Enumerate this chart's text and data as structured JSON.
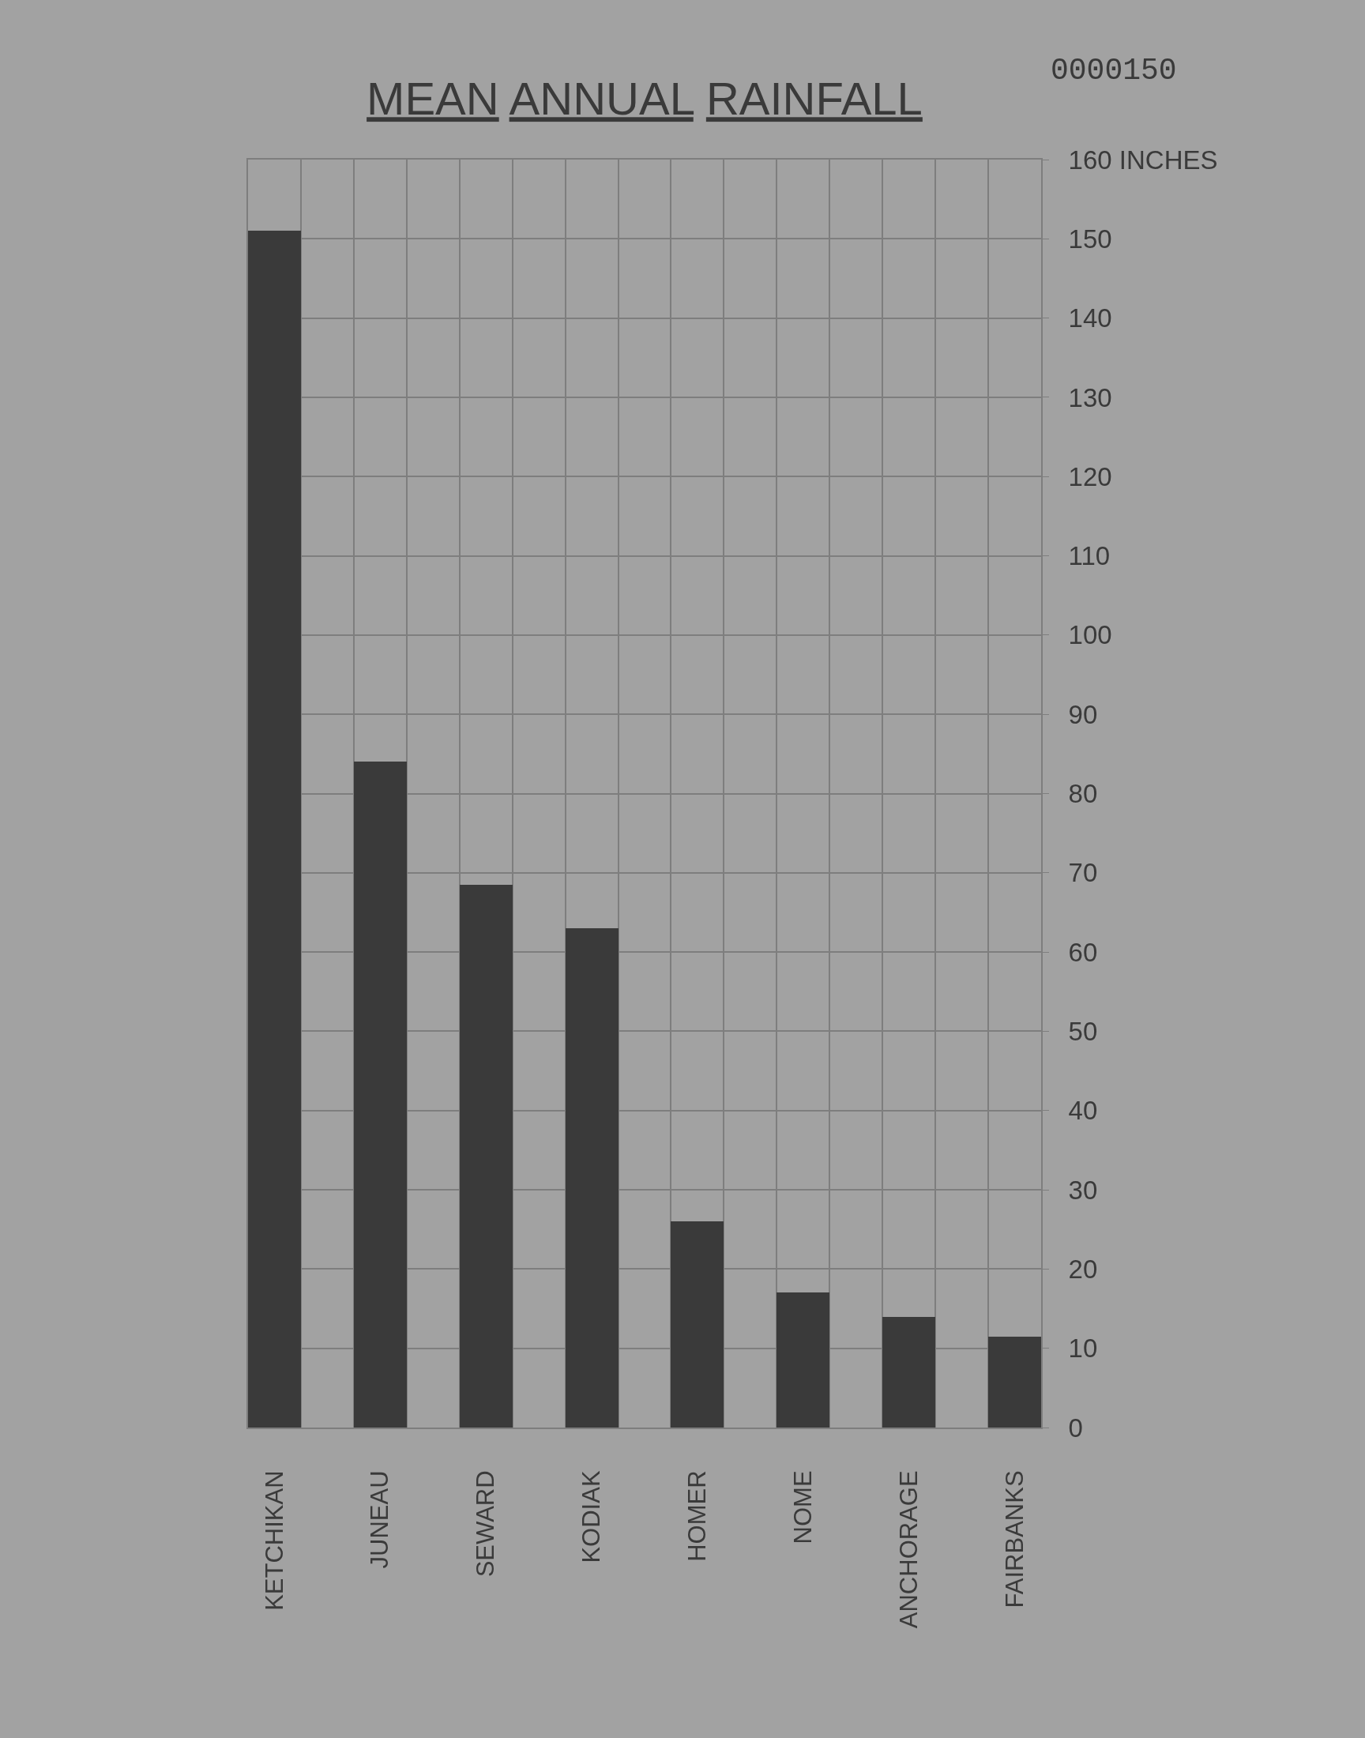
{
  "chart_data": {
    "type": "bar",
    "title": "MEAN ANNUAL RAINFALL",
    "annotations": [
      "0000150"
    ],
    "categories": [
      "KETCHIKAN",
      "JUNEAU",
      "SEWARD",
      "KODIAK",
      "HOMER",
      "NOME",
      "ANCHORAGE",
      "FAIRBANKS"
    ],
    "values": [
      151,
      84,
      68.5,
      63,
      26,
      17,
      14,
      11.5
    ],
    "color": "#3a3a3a",
    "ylim": [
      0,
      160
    ],
    "yticks": [
      0,
      10,
      20,
      30,
      40,
      50,
      60,
      70,
      80,
      90,
      100,
      110,
      120,
      130,
      140,
      150,
      {
        "value": 160,
        "label": "160 INCHES"
      }
    ],
    "grid": true
  }
}
